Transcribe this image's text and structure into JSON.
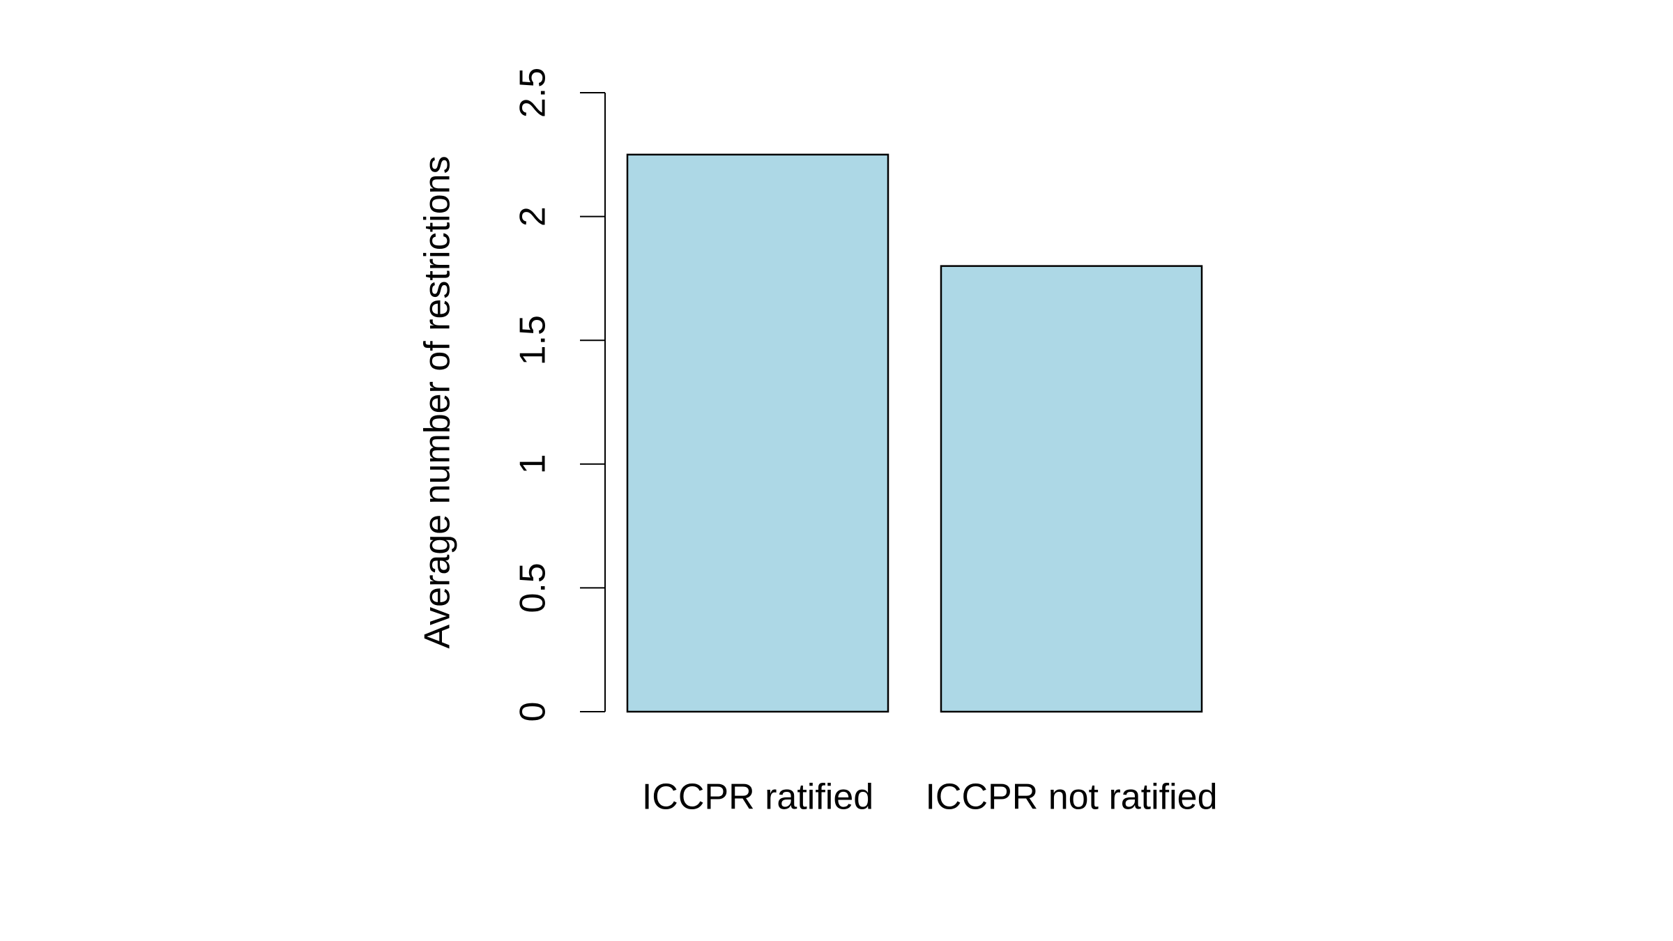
{
  "chart_data": {
    "type": "bar",
    "y_label": "Average number of restrictions",
    "categories": [
      "ICCPR ratified",
      "ICCPR not ratified"
    ],
    "values": [
      2.25,
      1.8
    ],
    "color": "#add8e6",
    "ylim": [
      0,
      2.5
    ],
    "yticks": [
      0,
      0.5,
      1,
      1.5,
      2,
      2.5
    ]
  }
}
